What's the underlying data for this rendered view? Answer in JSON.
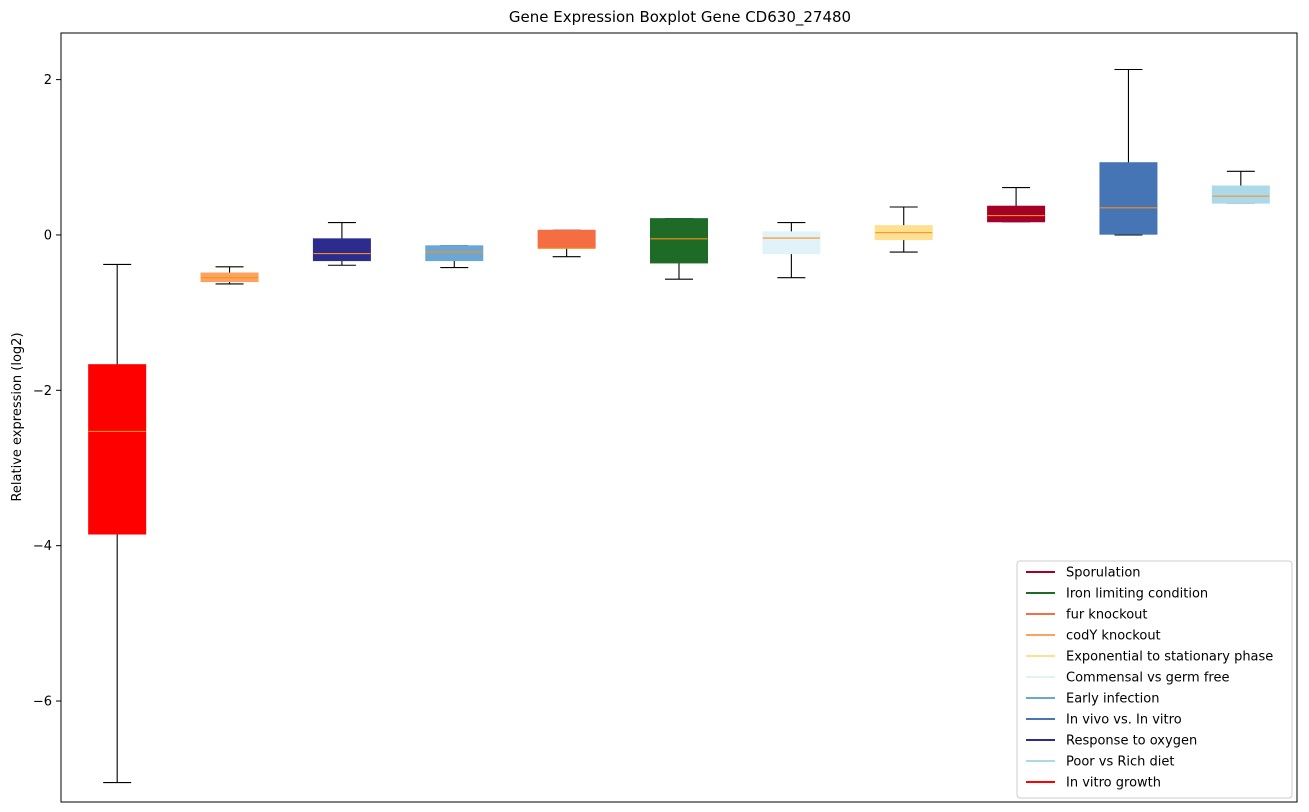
{
  "chart_data": {
    "type": "boxplot",
    "title": "Gene Expression Boxplot Gene CD630_27480",
    "xlabel": "",
    "ylabel": "Relative expression (log2)",
    "ylim": [
      -7.3,
      2.6
    ],
    "yticks": [
      2,
      0,
      -2,
      -4,
      -6
    ],
    "ytick_labels": [
      "2",
      "0",
      "−2",
      "−4",
      "−6"
    ],
    "grid": false,
    "legend_position": "lower-right",
    "median_color": "#ff8c1a",
    "boxes": [
      {
        "label": "In vitro growth",
        "color": "#ff0000",
        "whislo": -7.05,
        "q1": -3.85,
        "med": -2.53,
        "q3": -1.67,
        "whishi": -0.38
      },
      {
        "label": "codY knockout",
        "color": "#fca35f",
        "whislo": -0.63,
        "q1": -0.6,
        "med": -0.55,
        "q3": -0.49,
        "whishi": -0.41
      },
      {
        "label": "Response to oxygen",
        "color": "#2c2c8f",
        "whislo": -0.39,
        "q1": -0.33,
        "med": -0.24,
        "q3": -0.05,
        "whishi": 0.16
      },
      {
        "label": "Early infection",
        "color": "#6ba7d4",
        "whislo": -0.42,
        "q1": -0.33,
        "med": -0.22,
        "q3": -0.14,
        "whishi": -0.14
      },
      {
        "label": "fur knockout",
        "color": "#f46d43",
        "whislo": -0.28,
        "q1": -0.17,
        "med": -0.17,
        "q3": 0.06,
        "whishi": 0.06
      },
      {
        "label": "Iron limiting condition",
        "color": "#1e6b28",
        "whislo": -0.57,
        "q1": -0.36,
        "med": -0.05,
        "q3": 0.21,
        "whishi": 0.21
      },
      {
        "label": "Commensal vs germ free",
        "color": "#e0f3f8",
        "whislo": -0.55,
        "q1": -0.24,
        "med": -0.04,
        "q3": 0.04,
        "whishi": 0.16
      },
      {
        "label": "Exponential to stationary phase",
        "color": "#fee090",
        "whislo": -0.22,
        "q1": -0.06,
        "med": 0.03,
        "q3": 0.12,
        "whishi": 0.36
      },
      {
        "label": "Sporulation",
        "color": "#a50026",
        "whislo": 0.17,
        "q1": 0.17,
        "med": 0.25,
        "q3": 0.37,
        "whishi": 0.61
      },
      {
        "label": "In vivo vs. In vitro",
        "color": "#4575b4",
        "whislo": 0.0,
        "q1": 0.01,
        "med": 0.35,
        "q3": 0.93,
        "whishi": 2.13
      },
      {
        "label": "Poor vs Rich diet",
        "color": "#abd9e9",
        "whislo": 0.41,
        "q1": 0.41,
        "med": 0.5,
        "q3": 0.63,
        "whishi": 0.82
      }
    ],
    "legend": [
      {
        "label": "Sporulation",
        "color": "#a50026"
      },
      {
        "label": "Iron limiting condition",
        "color": "#1e6b28"
      },
      {
        "label": "fur knockout",
        "color": "#f46d43"
      },
      {
        "label": "codY knockout",
        "color": "#fca35f"
      },
      {
        "label": "Exponential to stationary phase",
        "color": "#fee090"
      },
      {
        "label": "Commensal vs germ free",
        "color": "#e0f3f8"
      },
      {
        "label": "Early infection",
        "color": "#6ba7d4"
      },
      {
        "label": "In vivo vs. In vitro",
        "color": "#4575b4"
      },
      {
        "label": "Response to oxygen",
        "color": "#2c2c8f"
      },
      {
        "label": "Poor vs Rich diet",
        "color": "#abd9e9"
      },
      {
        "label": "In vitro growth",
        "color": "#ff0000"
      }
    ]
  }
}
